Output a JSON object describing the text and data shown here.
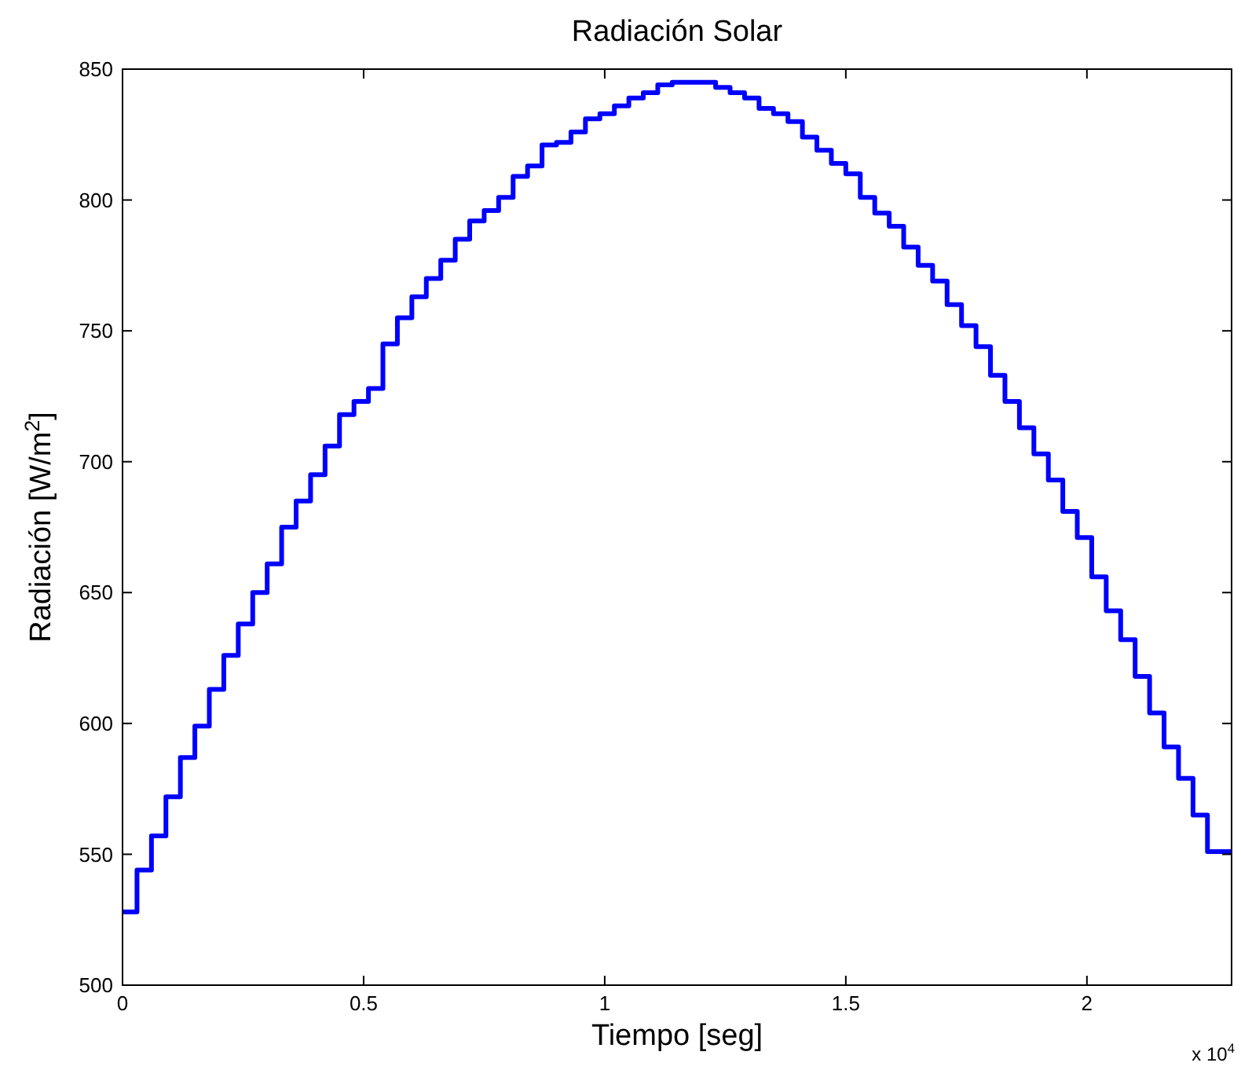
{
  "chart_data": {
    "type": "step",
    "title": "Radiación Solar",
    "xlabel": "Tiempo [seg]",
    "ylabel": "Radiación [W/m$^{2}$]",
    "annotations": [
      "x 10$^{4}$"
    ],
    "x": [
      0,
      0.03,
      0.06,
      0.09,
      0.12,
      0.15,
      0.18,
      0.21,
      0.24,
      0.27,
      0.3,
      0.33,
      0.36,
      0.39,
      0.42,
      0.45,
      0.48,
      0.51,
      0.54,
      0.57,
      0.6,
      0.63,
      0.66,
      0.69,
      0.72,
      0.75,
      0.78,
      0.81,
      0.84,
      0.87,
      0.9,
      0.93,
      0.96,
      0.99,
      1.02,
      1.05,
      1.08,
      1.11,
      1.14,
      1.17,
      1.2,
      1.23,
      1.26,
      1.29,
      1.32,
      1.35,
      1.38,
      1.41,
      1.44,
      1.47,
      1.5,
      1.53,
      1.56,
      1.59,
      1.62,
      1.65,
      1.68,
      1.71,
      1.74,
      1.77,
      1.8,
      1.83,
      1.86,
      1.89,
      1.92,
      1.95,
      1.98,
      2.01,
      2.04,
      2.07,
      2.1,
      2.13,
      2.16,
      2.19,
      2.22,
      2.25,
      2.3
    ],
    "series": [
      {
        "color": "#0000ff",
        "values": [
          528,
          544,
          557,
          572,
          587,
          599,
          613,
          626,
          638,
          650,
          661,
          675,
          685,
          695,
          706,
          718,
          723,
          728,
          745,
          755,
          763,
          770,
          777,
          785,
          792,
          796,
          801,
          809,
          813,
          821,
          822,
          826,
          831,
          833,
          836,
          839,
          841,
          844,
          845,
          845,
          845,
          843,
          841,
          839,
          835,
          833,
          830,
          824,
          819,
          814,
          810,
          801,
          795,
          790,
          782,
          775,
          769,
          760,
          752,
          744,
          733,
          723,
          713,
          703,
          693,
          681,
          671,
          656,
          643,
          632,
          618,
          604,
          591,
          579,
          565,
          551,
          551
        ]
      }
    ],
    "xlim": [
      0,
      2.3
    ],
    "xticks": [
      0,
      0.5,
      1,
      1.5,
      2
    ],
    "ylim": [
      500,
      850
    ],
    "yticks": [
      500,
      550,
      600,
      650,
      700,
      750,
      800,
      850
    ],
    "grid": false,
    "line_style": "solid"
  }
}
